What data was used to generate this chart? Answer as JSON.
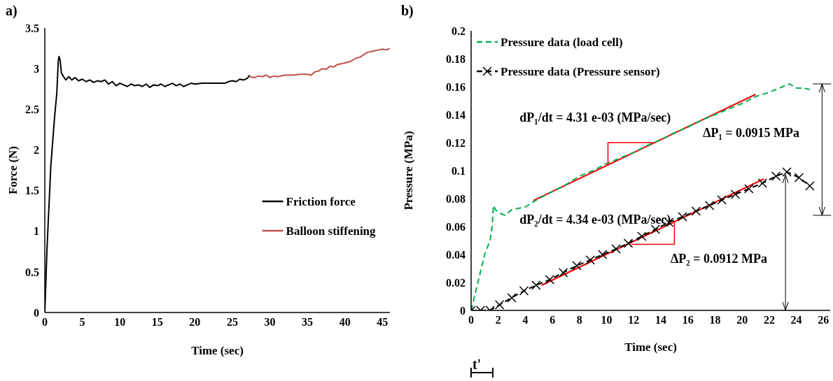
{
  "chart_data": [
    {
      "type": "line",
      "title": "a)",
      "xlabel": "Time (sec)",
      "ylabel": "Force (N)",
      "xlim": [
        0,
        46
      ],
      "xticks": [
        0,
        5,
        10,
        15,
        20,
        25,
        30,
        35,
        40,
        45
      ],
      "ylim": [
        0,
        3.5
      ],
      "yticks": [
        0,
        0.5,
        1,
        1.5,
        2,
        2.5,
        3,
        3.5
      ],
      "grid": false,
      "legend": "right",
      "series": [
        {
          "name": "Friction force",
          "color": "#000000",
          "x": [
            0,
            0.3,
            0.8,
            1.3,
            1.6,
            1.8,
            1.9,
            2.05,
            2.2,
            2.5,
            2.8,
            3.2,
            3.6,
            4,
            4.5,
            5,
            5.5,
            6,
            6.5,
            7,
            7.5,
            8,
            8.5,
            9,
            9.5,
            10,
            10.5,
            11,
            11.5,
            12,
            12.5,
            13,
            13.5,
            14,
            14.5,
            15,
            15.5,
            16,
            16.5,
            17,
            17.5,
            18,
            18.5,
            19,
            19.5,
            20,
            21,
            22,
            23,
            24,
            24.5,
            25,
            25.5,
            26,
            26.5,
            27,
            27.3
          ],
          "values": [
            0,
            0.8,
            1.8,
            2.4,
            2.7,
            3.1,
            3.15,
            3.1,
            2.95,
            2.9,
            2.86,
            2.9,
            2.86,
            2.89,
            2.85,
            2.87,
            2.84,
            2.86,
            2.83,
            2.85,
            2.84,
            2.86,
            2.81,
            2.84,
            2.79,
            2.82,
            2.8,
            2.78,
            2.81,
            2.79,
            2.8,
            2.78,
            2.81,
            2.77,
            2.8,
            2.79,
            2.81,
            2.78,
            2.8,
            2.82,
            2.79,
            2.81,
            2.78,
            2.8,
            2.82,
            2.81,
            2.82,
            2.82,
            2.82,
            2.82,
            2.84,
            2.85,
            2.84,
            2.87,
            2.86,
            2.88,
            2.92
          ]
        },
        {
          "name": "Balloon stiffening",
          "color": "#c0504d",
          "x": [
            27.3,
            28,
            28.5,
            29,
            29.5,
            30,
            30.5,
            31,
            32,
            33,
            34,
            35,
            35.5,
            36,
            36.5,
            37,
            37.5,
            38,
            38.5,
            39,
            39.5,
            40,
            40.5,
            41,
            41.5,
            42,
            42.5,
            43,
            43.5,
            44,
            44.5,
            45,
            45.5,
            46
          ],
          "values": [
            2.9,
            2.89,
            2.91,
            2.9,
            2.92,
            2.89,
            2.91,
            2.9,
            2.92,
            2.92,
            2.93,
            2.93,
            2.92,
            2.96,
            2.97,
            3.0,
            2.99,
            3.03,
            3.02,
            3.05,
            3.06,
            3.07,
            3.08,
            3.1,
            3.13,
            3.14,
            3.17,
            3.2,
            3.21,
            3.22,
            3.23,
            3.24,
            3.23,
            3.25
          ]
        }
      ]
    },
    {
      "type": "line",
      "title": "b)",
      "xlabel": "Time (sec)",
      "ylabel": "Pressure (MPa)",
      "xlim": [
        0,
        26.5
      ],
      "xticks": [
        0,
        2,
        4,
        6,
        8,
        10,
        12,
        14,
        16,
        18,
        20,
        22,
        24,
        26
      ],
      "ylim": [
        0,
        0.2
      ],
      "yticks": [
        0,
        0.02,
        0.04,
        0.06,
        0.08,
        0.1,
        0.12,
        0.14,
        0.16,
        0.18,
        0.2
      ],
      "grid": false,
      "legend": "top left",
      "annotations": [
        "dP₁/dt = 4.31 e-03 (MPa/sec)",
        "ΔP₁ = 0.0915 MPa",
        "dP₂/dt = 4.34 e-03 (MPa/sec)",
        "ΔP₂ = 0.0912 MPa",
        "t'"
      ],
      "series": [
        {
          "name": "Pressure data (load cell)",
          "color": "#00b050",
          "line_style": "dashed",
          "marker": "none",
          "x": [
            0,
            0.5,
            1,
            1.4,
            1.55,
            1.65,
            1.8,
            2,
            2.5,
            3,
            4,
            5,
            6,
            7,
            8,
            9,
            10,
            11,
            12,
            13,
            14,
            15,
            16,
            17,
            18,
            19,
            20,
            21,
            22,
            23,
            23.5,
            24,
            24.5,
            25
          ],
          "values": [
            0,
            0.02,
            0.04,
            0.05,
            0.06,
            0.075,
            0.072,
            0.07,
            0.068,
            0.072,
            0.074,
            0.08,
            0.085,
            0.09,
            0.096,
            0.1,
            0.105,
            0.109,
            0.113,
            0.118,
            0.122,
            0.127,
            0.131,
            0.136,
            0.14,
            0.144,
            0.148,
            0.153,
            0.156,
            0.16,
            0.162,
            0.159,
            0.159,
            0.158
          ]
        },
        {
          "name": "Pressure data (Pressure sensor)",
          "color": "#000000",
          "line_style": "dashed",
          "marker": "cross",
          "x": [
            0,
            0.7,
            1.4,
            2.1,
            3,
            3.9,
            4.8,
            5.8,
            6.8,
            7.8,
            8.8,
            9.7,
            10.7,
            11.6,
            12.6,
            13.6,
            14.6,
            15.6,
            16.6,
            17.6,
            18.5,
            19.5,
            20.5,
            21.5,
            22.5,
            23.3,
            24.2,
            25
          ],
          "values": [
            0,
            0,
            0,
            0.004,
            0.009,
            0.014,
            0.018,
            0.022,
            0.027,
            0.032,
            0.036,
            0.04,
            0.044,
            0.048,
            0.053,
            0.058,
            0.063,
            0.067,
            0.071,
            0.075,
            0.079,
            0.083,
            0.087,
            0.091,
            0.096,
            0.099,
            0.095,
            0.089
          ]
        },
        {
          "color": "#ff0000",
          "line_style": "solid",
          "marker": "none",
          "x": [
            4.6,
            21
          ],
          "values": [
            0.0786,
            0.1545
          ]
        },
        {
          "color": "#ff0000",
          "line_style": "solid",
          "marker": "none",
          "x": [
            5.2,
            21.6
          ],
          "values": [
            0.018,
            0.094
          ]
        }
      ]
    }
  ]
}
